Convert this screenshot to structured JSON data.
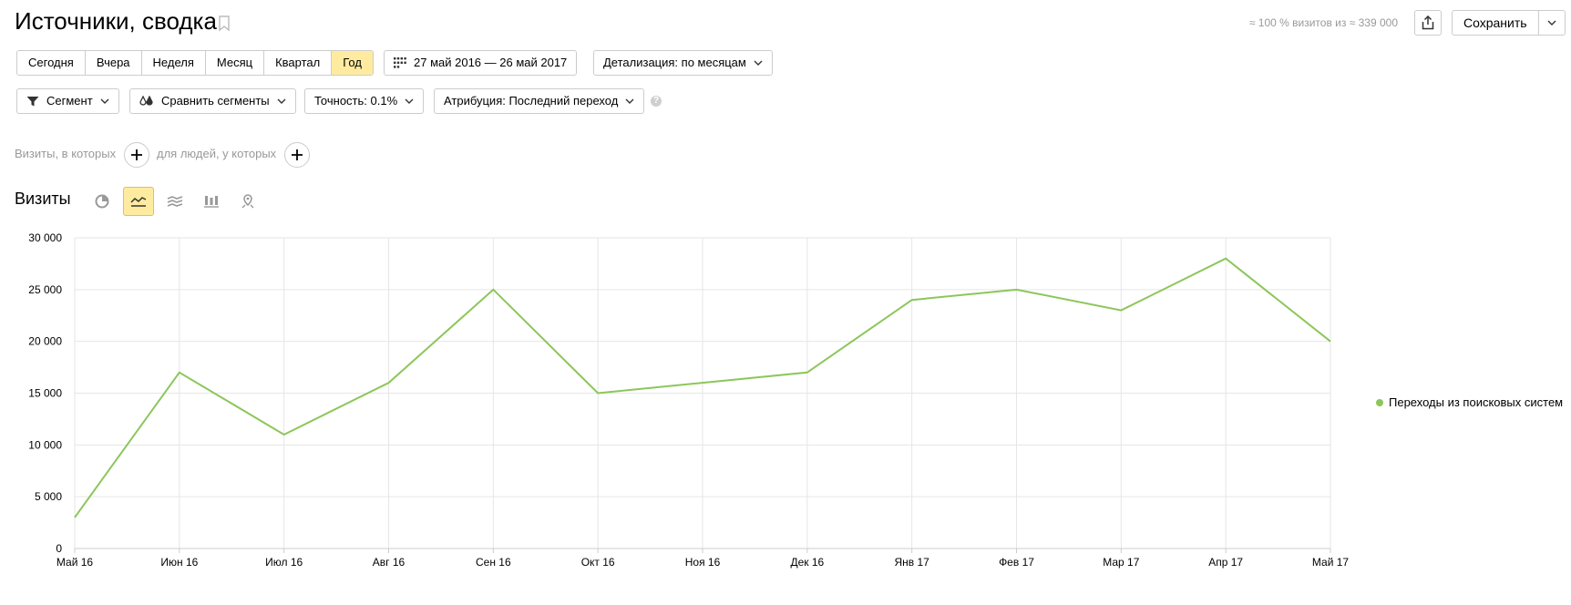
{
  "header": {
    "title": "Источники, сводка",
    "visits_info": "≈ 100 % визитов из ≈ 339 000",
    "save_label": "Сохранить",
    "icons": [
      "bookmark-icon",
      "share-icon",
      "chevron-down-icon"
    ]
  },
  "periods": {
    "items": [
      "Сегодня",
      "Вчера",
      "Неделя",
      "Месяц",
      "Квартал",
      "Год"
    ],
    "active": "Год"
  },
  "date_range": {
    "label": "27 май 2016 — 26 май 2017",
    "icon": "calendar-icon"
  },
  "detail": {
    "label": "Детализация: по месяцам"
  },
  "toolbar": {
    "segment_label": "Сегмент",
    "compare_label": "Сравнить сегменты",
    "accuracy_label": "Точность: 0.1%",
    "attribution_label": "Атрибуция: Последний переход",
    "help_glyph": "?"
  },
  "filters": {
    "visits_label": "Визиты, в которых",
    "people_label": "для людей, у которых"
  },
  "section": {
    "title": "Визиты",
    "views": [
      "pie-chart-icon",
      "line-chart-icon",
      "area-chart-icon",
      "bar-chart-icon",
      "map-icon"
    ],
    "active_view": "line-chart-icon"
  },
  "colors": {
    "accent": "#ffeba0",
    "series": "#8cc65a",
    "grid": "#e6e6e6",
    "muted": "#999999"
  },
  "chart_data": {
    "type": "line",
    "categories": [
      "Май 16",
      "Июн 16",
      "Июл 16",
      "Авг 16",
      "Сен 16",
      "Окт 16",
      "Ноя 16",
      "Дек 16",
      "Янв 17",
      "Фев 17",
      "Мар 17",
      "Апр 17",
      "Май 17"
    ],
    "series": [
      {
        "name": "Переходы из поисковых систем",
        "values": [
          3000,
          17000,
          11000,
          16000,
          25000,
          15000,
          16000,
          17000,
          24000,
          25000,
          23000,
          28000,
          20000
        ]
      }
    ],
    "y_ticks": [
      0,
      5000,
      10000,
      15000,
      20000,
      25000,
      30000
    ],
    "y_tick_labels": [
      "0",
      "5 000",
      "10 000",
      "15 000",
      "20 000",
      "25 000",
      "30 000"
    ],
    "ylim": [
      0,
      30000
    ],
    "grid": true,
    "legend": "right"
  }
}
